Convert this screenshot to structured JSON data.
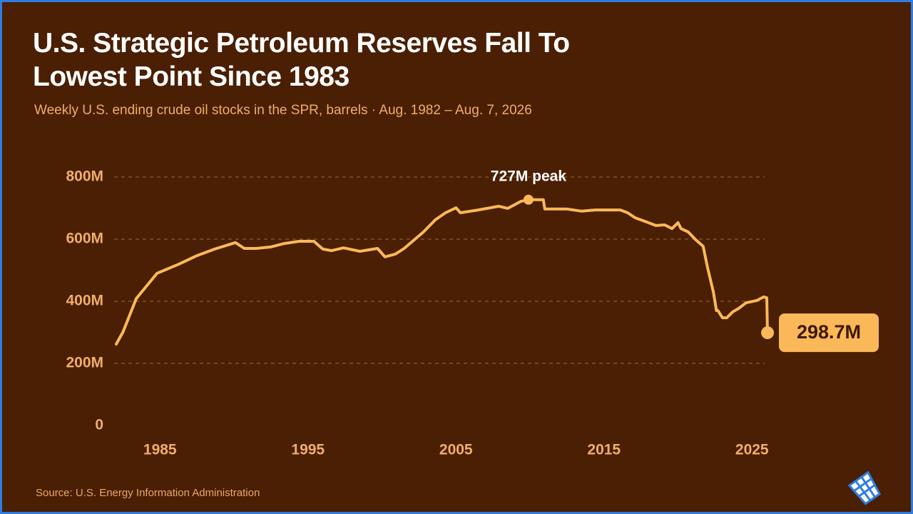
{
  "chart_data": {
    "type": "line",
    "title": "U.S. Strategic Petroleum Reserves Fall To Lowest Point Since 1983",
    "subtitle": "Weekly U.S. ending crude oil stocks in the SPR, barrels  ·  Aug. 1982 – Aug. 7, 2026",
    "source": "Source: U.S. Energy Information Administration",
    "color": "#fbb858",
    "grid": true,
    "xlim": [
      1982,
      2026
    ],
    "xticks": [
      1985,
      1995,
      2005,
      2015,
      2025
    ],
    "ylim": [
      0,
      800000000
    ],
    "yticks": [
      0,
      {
        "value": 200000000,
        "label": "200M"
      },
      {
        "value": 400000000,
        "label": "400M"
      },
      {
        "value": 600000000,
        "label": "600M"
      },
      {
        "value": 800000000,
        "label": "800M"
      }
    ],
    "x": [
      1982.05,
      1982.5,
      1983.4,
      1984.8,
      1986.3,
      1987.5,
      1988.7,
      1990.1,
      1990.7,
      1991.5,
      1992.5,
      1993.4,
      1994.4,
      1995.4,
      1996.0,
      1996.6,
      1997.4,
      1998.5,
      1999.7,
      2000.2,
      2000.9,
      2001.5,
      2002.8,
      2003.6,
      2004.3,
      2005.0,
      2005.3,
      2006.5,
      2007.9,
      2008.5,
      2009.4,
      2009.9,
      2010.9,
      2011.0,
      2012.5,
      2013.5,
      2014.4,
      2016.1,
      2016.6,
      2017.1,
      2018.0,
      2018.5,
      2019.1,
      2019.6,
      2020.0,
      2020.2,
      2020.7,
      2021.2,
      2021.7,
      2022.0,
      2022.4,
      2022.6,
      2022.7,
      2023.0,
      2023.3,
      2023.7,
      2024.1,
      2024.6,
      2025.3,
      2025.8,
      2026.0,
      2026.05
    ],
    "series": [
      {
        "name": "SPR crude oil stocks",
        "color": "#fbb858",
        "values": [
          262000000,
          301000000,
          409000000,
          490000000,
          520000000,
          547000000,
          568000000,
          589000000,
          570000000,
          570000000,
          575000000,
          586000000,
          593000000,
          593000000,
          568000000,
          563000000,
          572000000,
          561000000,
          570000000,
          543000000,
          552000000,
          570000000,
          623000000,
          662000000,
          685000000,
          701000000,
          685000000,
          694000000,
          706000000,
          699000000,
          722000000,
          727000000,
          727000000,
          697000000,
          697000000,
          690000000,
          694000000,
          694000000,
          685000000,
          669000000,
          653000000,
          644000000,
          646000000,
          634000000,
          653000000,
          634000000,
          623000000,
          598000000,
          577000000,
          508000000,
          428000000,
          370000000,
          370000000,
          347000000,
          347000000,
          366000000,
          377000000,
          395000000,
          402000000,
          414000000,
          411000000,
          298700000
        ]
      }
    ],
    "annotations": [
      {
        "x": 2009.9,
        "value": 727000000,
        "label": "727M peak"
      },
      {
        "x": 2026.05,
        "value": 298700000,
        "label": "298.7M"
      }
    ]
  }
}
